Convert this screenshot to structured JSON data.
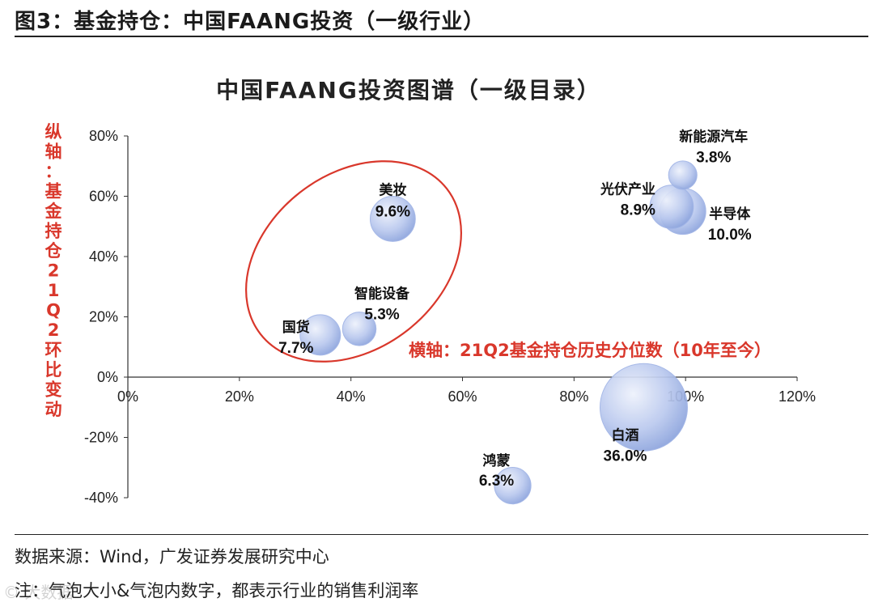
{
  "figure_title": "图3：基金持仓：中国FAANG投资（一级行业）",
  "source_text": "数据来源：Wind，广发证券发展研究中心",
  "note_text": "注：气泡大小&气泡内数字，都表示行业的销售利润率",
  "watermark": "© 大数据",
  "chart_data": {
    "type": "bubble",
    "title": "中国FAANG投资图谱（一级目录）",
    "ylabel": "纵轴：基金持仓21Q2环比变动",
    "xlabel": "横轴：21Q2基金持仓历史分位数（10年至今）",
    "xlim": [
      0,
      120
    ],
    "ylim": [
      -40,
      80
    ],
    "x_ticks": [
      "0%",
      "20%",
      "40%",
      "60%",
      "80%",
      "100%",
      "120%"
    ],
    "y_ticks": [
      "80%",
      "60%",
      "40%",
      "20%",
      "0%",
      "-20%",
      "-40%"
    ],
    "bubble_color": "#9fb3e6",
    "highlight_color": "#d9372b",
    "series": [
      {
        "name": "美妆",
        "x": 47.5,
        "y": 52.5,
        "size": 9.6,
        "size_label": "9.6%"
      },
      {
        "name": "智能设备",
        "x": 41.5,
        "y": 16,
        "size": 5.3,
        "size_label": "5.3%"
      },
      {
        "name": "国货",
        "x": 34.5,
        "y": 14,
        "size": 7.7,
        "size_label": "7.7%"
      },
      {
        "name": "新能源汽车",
        "x": 99.5,
        "y": 67,
        "size": 3.8,
        "size_label": "3.8%"
      },
      {
        "name": "光伏产业",
        "x": 97.5,
        "y": 56.5,
        "size": 8.9,
        "size_label": "8.9%"
      },
      {
        "name": "半导体",
        "x": 99.5,
        "y": 55,
        "size": 10.0,
        "size_label": "10.0%"
      },
      {
        "name": "白酒",
        "x": 92.5,
        "y": -10,
        "size": 36.0,
        "size_label": "36.0%"
      },
      {
        "name": "鸿蒙",
        "x": 69,
        "y": -36,
        "size": 6.3,
        "size_label": "6.3%"
      }
    ]
  }
}
